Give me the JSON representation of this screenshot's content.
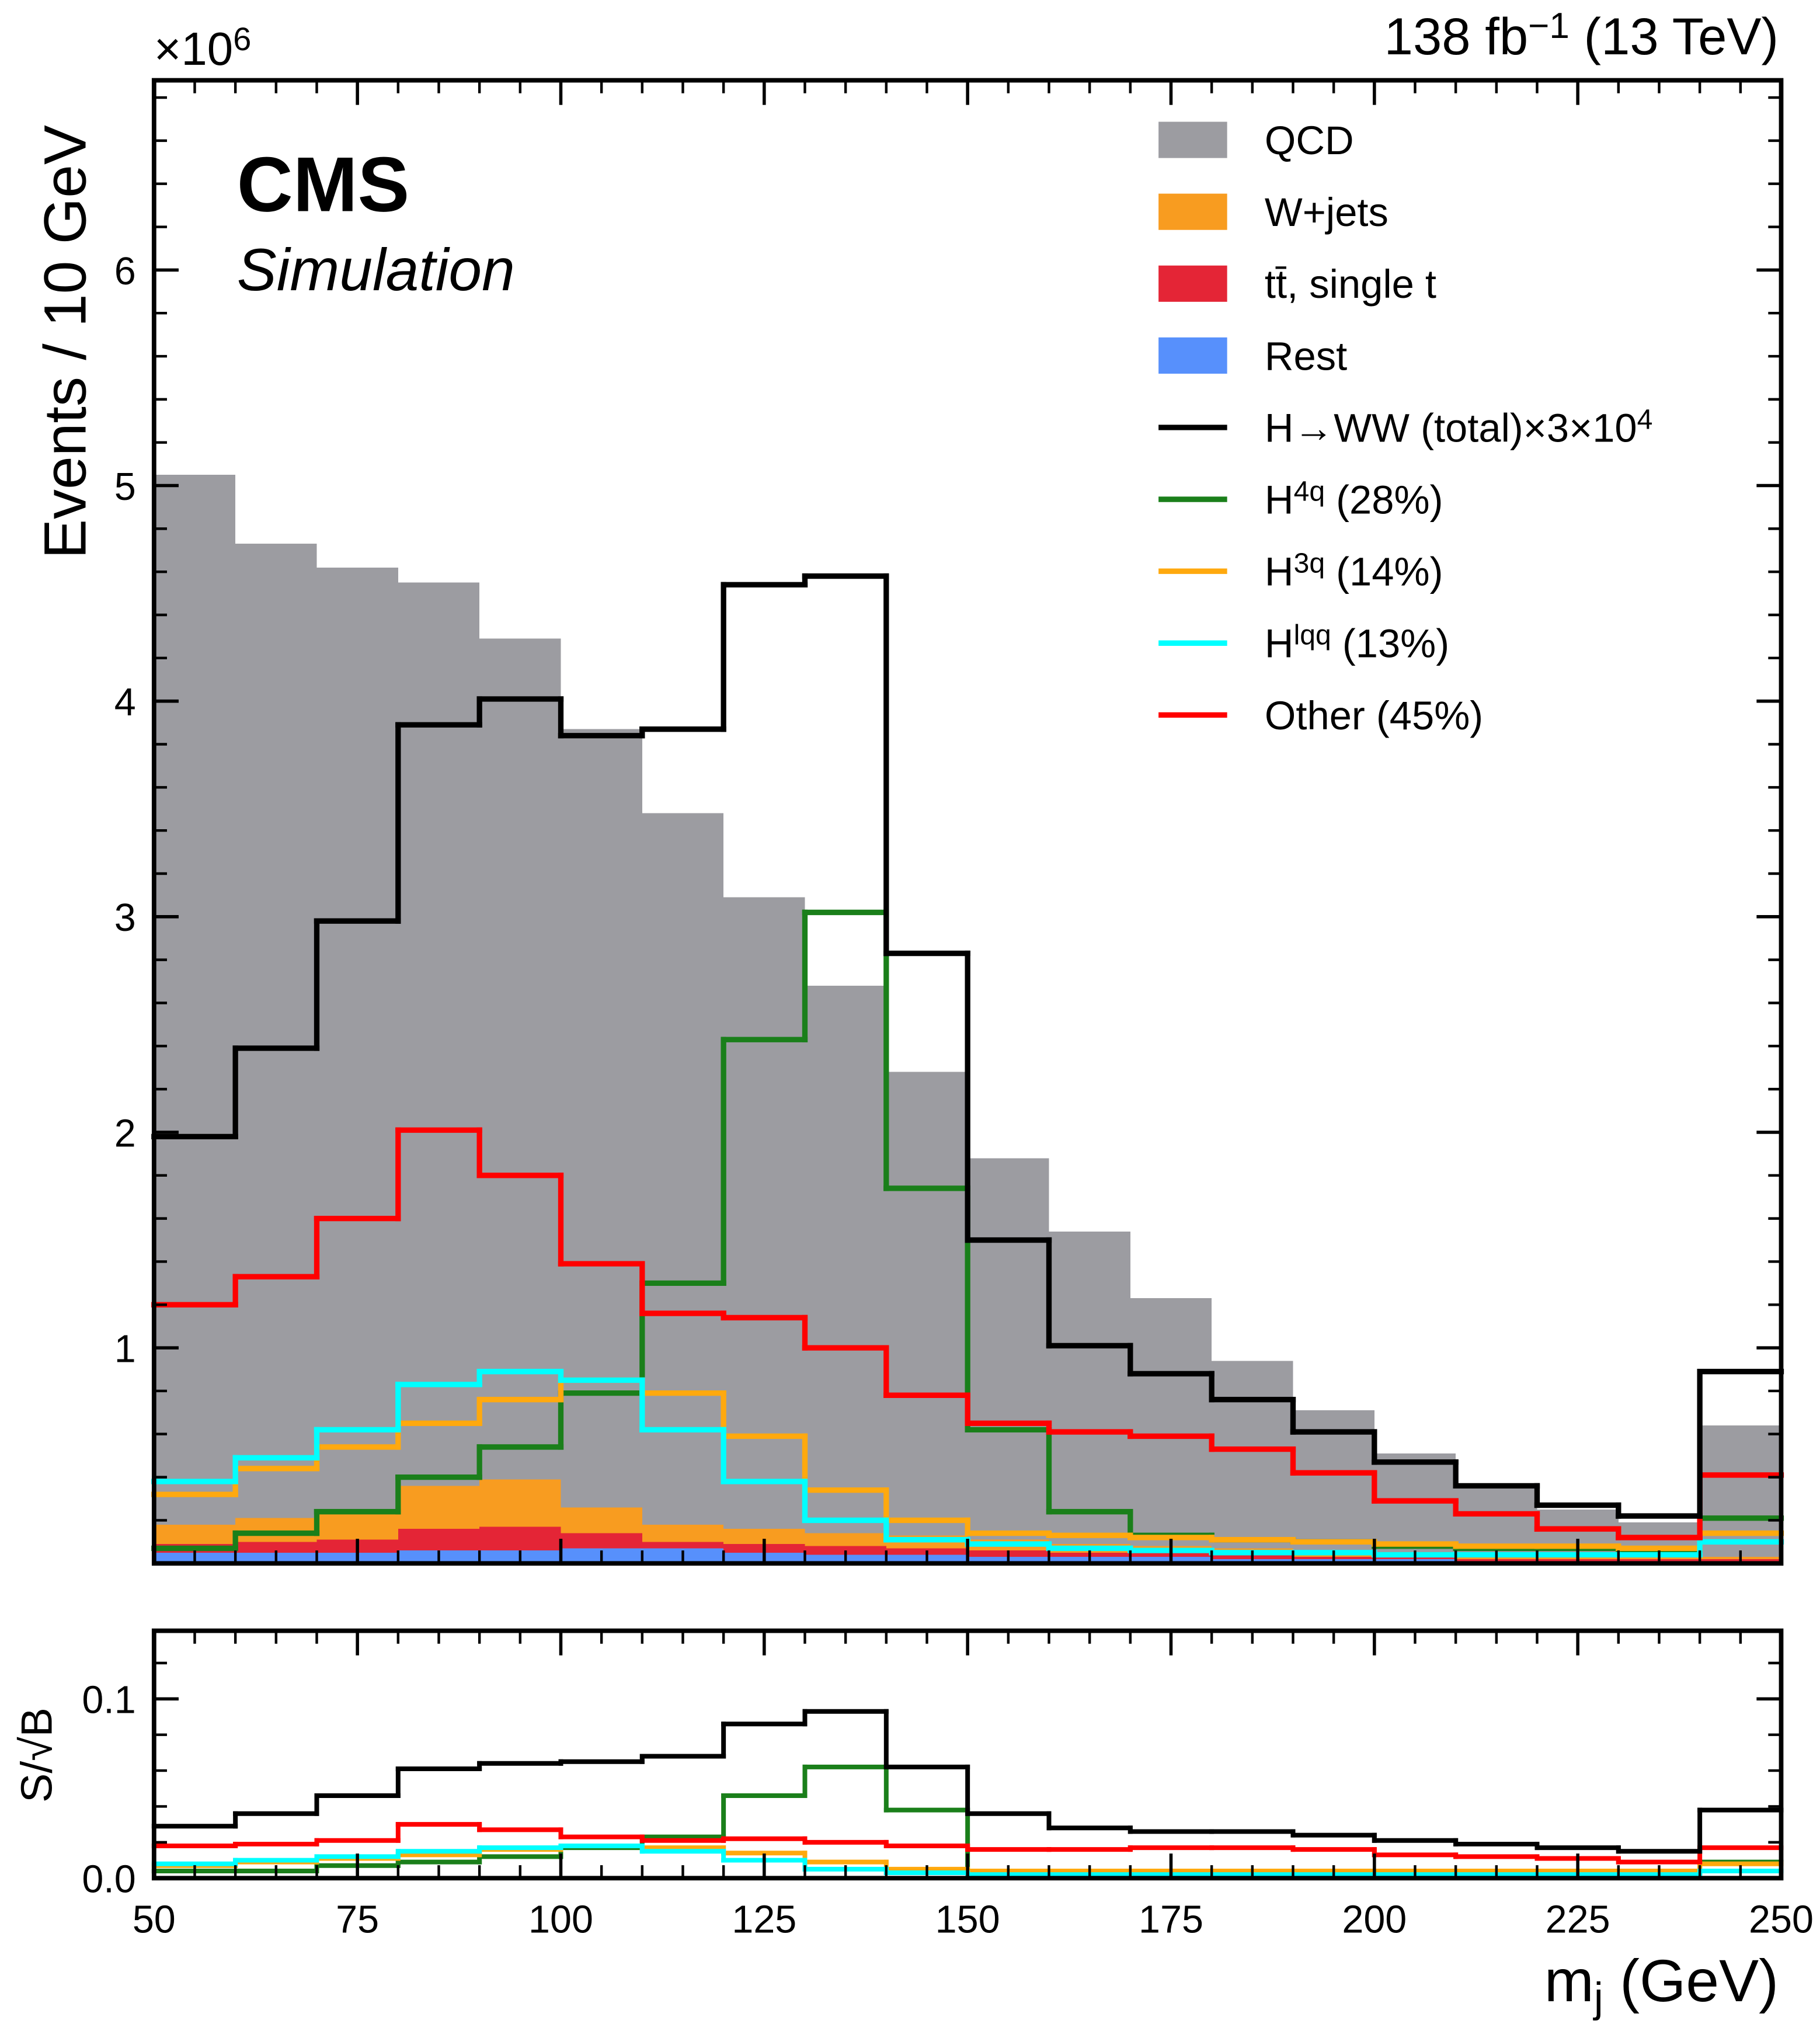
{
  "chart_data": [
    {
      "type": "histogram",
      "cms_label": "CMS",
      "cms_sublabel": "Simulation",
      "lumi": [
        "138 fb",
        "−1",
        " (13 TeV)"
      ],
      "multiplier": [
        "×10",
        "6"
      ],
      "ylabel": "Events / 10 GeV",
      "bins": [
        50,
        60,
        70,
        80,
        90,
        100,
        110,
        120,
        130,
        140,
        150,
        160,
        170,
        180,
        190,
        200,
        210,
        220,
        230,
        240,
        250
      ],
      "xlim": [
        50,
        250
      ],
      "xticks": [
        50,
        75,
        100,
        125,
        150,
        175,
        200,
        225,
        250
      ],
      "xtick_labels": false,
      "ylim": [
        0,
        6.88
      ],
      "yticks": [
        1,
        2,
        3,
        4,
        5,
        6
      ],
      "series": [
        {
          "name": [
            "QCD"
          ],
          "color": "#9c9ca1",
          "histtype": "fill",
          "values": [
            4.87,
            4.52,
            4.37,
            4.19,
            3.9,
            3.61,
            3.3,
            2.93,
            2.54,
            2.15,
            1.77,
            1.45,
            1.15,
            0.87,
            0.66,
            0.47,
            0.33,
            0.22,
            0.16,
            0.61
          ]
        },
        {
          "name": [
            "W+jets"
          ],
          "color": "#f89c20",
          "histtype": "fill",
          "values": [
            0.09,
            0.11,
            0.14,
            0.2,
            0.22,
            0.12,
            0.08,
            0.07,
            0.06,
            0.06,
            0.05,
            0.04,
            0.03,
            0.03,
            0.02,
            0.01,
            0.01,
            0.01,
            0.01,
            0.01
          ]
        },
        {
          "name": [
            "tt̄, single t"
          ],
          "color": "#e42536",
          "histtype": "fill",
          "values": [
            0.04,
            0.05,
            0.06,
            0.1,
            0.11,
            0.07,
            0.03,
            0.04,
            0.04,
            0.03,
            0.03,
            0.02,
            0.02,
            0.02,
            0.01,
            0.01,
            0.01,
            0.01,
            0.01,
            0.01
          ]
        },
        {
          "name": [
            "Rest"
          ],
          "color": "#5790fc",
          "histtype": "fill",
          "values": [
            0.05,
            0.05,
            0.05,
            0.06,
            0.06,
            0.07,
            0.07,
            0.05,
            0.04,
            0.04,
            0.03,
            0.03,
            0.03,
            0.02,
            0.02,
            0.02,
            0.01,
            0.01,
            0.01,
            0.01
          ]
        },
        {
          "name": [
            "H→WW (total)×3×10",
            "4"
          ],
          "color": "#000000",
          "histtype": "step",
          "values": [
            1.98,
            2.39,
            2.98,
            3.89,
            4.01,
            3.84,
            3.87,
            4.54,
            4.58,
            2.83,
            1.5,
            1.01,
            0.88,
            0.76,
            0.61,
            0.47,
            0.36,
            0.27,
            0.22,
            0.89
          ]
        },
        {
          "name": [
            "H",
            "4q",
            " (28%)"
          ],
          "color": "#1a7f1a",
          "histtype": "step",
          "values": [
            0.07,
            0.14,
            0.24,
            0.4,
            0.54,
            0.79,
            1.3,
            2.43,
            3.02,
            1.74,
            0.62,
            0.24,
            0.13,
            0.11,
            0.1,
            0.08,
            0.07,
            0.07,
            0.06,
            0.21
          ]
        },
        {
          "name": [
            "H",
            "3q",
            " (14%)"
          ],
          "color": "#ffa90e",
          "histtype": "step",
          "values": [
            0.32,
            0.44,
            0.54,
            0.65,
            0.76,
            0.85,
            0.79,
            0.59,
            0.34,
            0.2,
            0.14,
            0.13,
            0.12,
            0.11,
            0.1,
            0.09,
            0.08,
            0.08,
            0.07,
            0.14
          ]
        },
        {
          "name": [
            "H",
            "lqq",
            " (13%)"
          ],
          "color": "#00ffff",
          "histtype": "step",
          "values": [
            0.38,
            0.49,
            0.62,
            0.83,
            0.89,
            0.85,
            0.62,
            0.38,
            0.2,
            0.11,
            0.09,
            0.07,
            0.06,
            0.05,
            0.05,
            0.04,
            0.04,
            0.04,
            0.04,
            0.1
          ]
        },
        {
          "name": [
            "Other (45%)"
          ],
          "color": "#ff0000",
          "histtype": "step",
          "values": [
            1.2,
            1.33,
            1.6,
            2.01,
            1.8,
            1.39,
            1.16,
            1.14,
            1.0,
            0.78,
            0.65,
            0.61,
            0.59,
            0.53,
            0.42,
            0.29,
            0.23,
            0.16,
            0.12,
            0.41
          ]
        }
      ]
    },
    {
      "type": "histogram",
      "ylabel": "S/√B",
      "xlabel": [
        "m",
        "j",
        " (GeV)"
      ],
      "bins": [
        50,
        60,
        70,
        80,
        90,
        100,
        110,
        120,
        130,
        140,
        150,
        160,
        170,
        180,
        190,
        200,
        210,
        220,
        230,
        240,
        250
      ],
      "xlim": [
        50,
        250
      ],
      "xticks": [
        50,
        75,
        100,
        125,
        150,
        175,
        200,
        225,
        250
      ],
      "xtick_labels": true,
      "ylim": [
        0,
        0.138
      ],
      "yticks": [
        {
          "value": 0,
          "label": "0.0"
        },
        0.1
      ],
      "series": [
        {
          "color": "#000000",
          "histtype": "step",
          "values": [
            0.029,
            0.036,
            0.046,
            0.061,
            0.064,
            0.065,
            0.068,
            0.086,
            0.093,
            0.062,
            0.036,
            0.028,
            0.026,
            0.026,
            0.024,
            0.021,
            0.019,
            0.017,
            0.015,
            0.038
          ]
        },
        {
          "color": "#1a7f1a",
          "histtype": "step",
          "values": [
            0.004,
            0.004,
            0.007,
            0.009,
            0.012,
            0.017,
            0.023,
            0.046,
            0.062,
            0.038,
            0.004,
            0.003,
            0.003,
            0.003,
            0.003,
            0.003,
            0.003,
            0.003,
            0.003,
            0.009
          ]
        },
        {
          "color": "#ffa90e",
          "histtype": "step",
          "values": [
            0.007,
            0.009,
            0.011,
            0.013,
            0.016,
            0.018,
            0.017,
            0.014,
            0.009,
            0.005,
            0.004,
            0.004,
            0.004,
            0.004,
            0.004,
            0.004,
            0.004,
            0.004,
            0.004,
            0.008
          ]
        },
        {
          "color": "#00ffff",
          "histtype": "step",
          "values": [
            0.008,
            0.01,
            0.012,
            0.015,
            0.017,
            0.018,
            0.015,
            0.01,
            0.005,
            0.003,
            0.002,
            0.002,
            0.002,
            0.002,
            0.002,
            0.002,
            0.002,
            0.002,
            0.002,
            0.004
          ]
        },
        {
          "color": "#ff0000",
          "histtype": "step",
          "values": [
            0.018,
            0.019,
            0.021,
            0.03,
            0.027,
            0.023,
            0.021,
            0.022,
            0.02,
            0.018,
            0.016,
            0.016,
            0.017,
            0.017,
            0.016,
            0.013,
            0.012,
            0.011,
            0.009,
            0.017
          ]
        }
      ]
    }
  ]
}
